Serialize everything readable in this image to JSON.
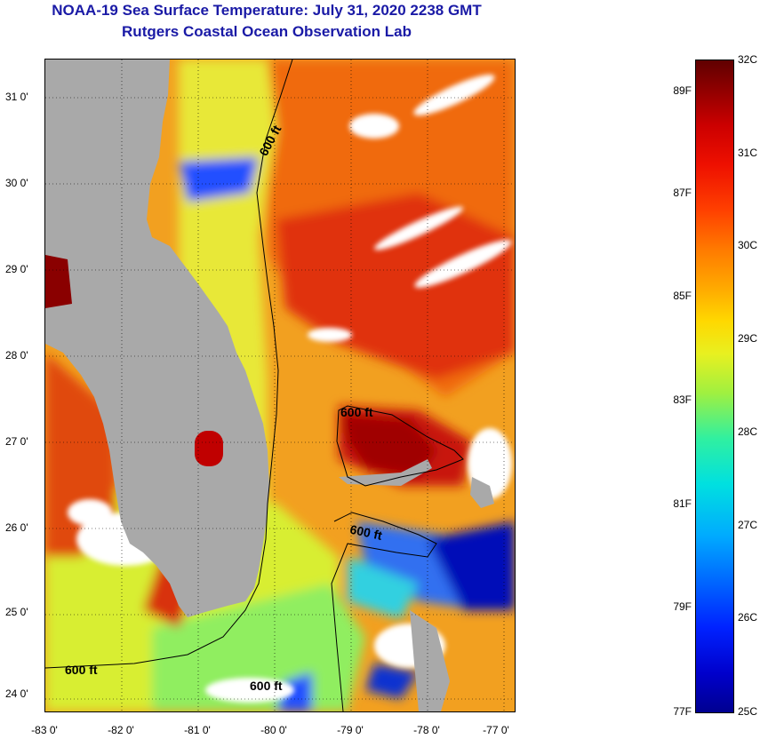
{
  "title": {
    "line1": "NOAA-19 Sea Surface Temperature:  July 31, 2020 2238 GMT",
    "line2": "Rutgers Coastal Ocean Observation Lab"
  },
  "map": {
    "lat_labels": [
      "31 0'",
      "30 0'",
      "29 0'",
      "28 0'",
      "27 0'",
      "26 0'",
      "25 0'",
      "24 0'"
    ],
    "lon_labels": [
      "-83 0'",
      "-82 0'",
      "-81 0'",
      "-80 0'",
      "-79 0'",
      "-78 0'",
      "-77 0'"
    ],
    "contour_labels": [
      "600 ft",
      "600 ft",
      "600 ft",
      "600 ft",
      "600 ft"
    ],
    "colors": {
      "land": "#a9a9a9",
      "cloud": "#ffffff",
      "warm": "#f2a020",
      "hot": "#e03010",
      "very_hot": "#a80000",
      "cool": "#d8ee30",
      "cold": "#2040ff",
      "coldest": "#0000a0"
    }
  },
  "colorbar": {
    "fahrenheit": [
      "89F",
      "87F",
      "85F",
      "83F",
      "81F",
      "79F",
      "77F"
    ],
    "celsius": [
      "32C",
      "31C",
      "30C",
      "29C",
      "28C",
      "27C",
      "26C",
      "25C"
    ]
  }
}
